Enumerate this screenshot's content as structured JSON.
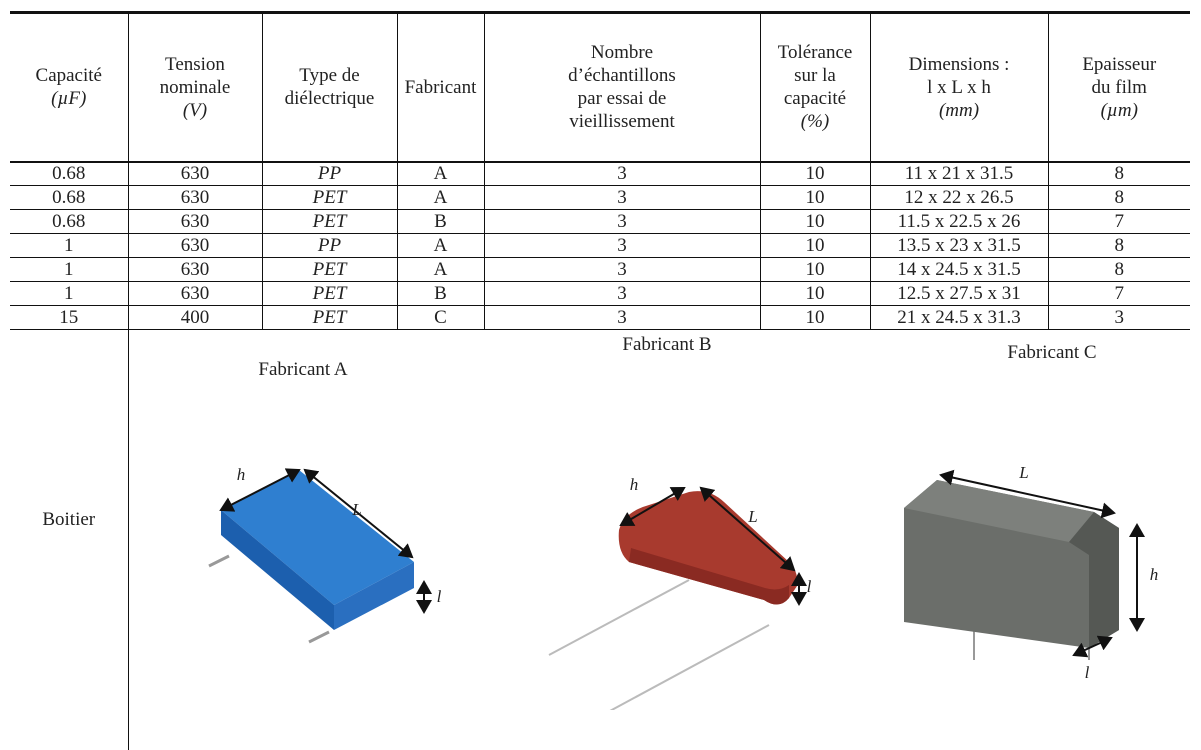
{
  "table": {
    "headers": [
      {
        "lines": [
          "Capacité"
        ],
        "unit": "(µF)"
      },
      {
        "lines": [
          "Tension",
          "nominale"
        ],
        "unit": "(V)"
      },
      {
        "lines": [
          "Type de",
          "diélectrique"
        ]
      },
      {
        "lines": [
          "Fabricant"
        ]
      },
      {
        "lines": [
          "Nombre",
          "d’échantillons",
          "par essai de",
          "vieillissement"
        ]
      },
      {
        "lines": [
          "Tolérance",
          "sur la",
          "capacité"
        ],
        "unit": "(%)"
      },
      {
        "lines": [
          "Dimensions :",
          "l x L x h"
        ],
        "unit": "(mm)"
      },
      {
        "lines": [
          "Epaisseur",
          "du film"
        ],
        "unit": "(µm)"
      }
    ],
    "rows": [
      [
        0.68,
        630,
        "PP",
        "A",
        3,
        10,
        "11 x 21 x 31.5",
        8
      ],
      [
        0.68,
        630,
        "PET",
        "A",
        3,
        10,
        "12 x 22 x 26.5",
        8
      ],
      [
        0.68,
        630,
        "PET",
        "B",
        3,
        10,
        "11.5 x 22.5 x 26",
        7
      ],
      [
        1,
        630,
        "PP",
        "A",
        3,
        10,
        "13.5 x 23 x 31.5",
        8
      ],
      [
        1,
        630,
        "PET",
        "A",
        3,
        10,
        "14 x 24.5 x 31.5",
        8
      ],
      [
        1,
        630,
        "PET",
        "B",
        3,
        10,
        "12.5 x 27.5 x 31",
        7
      ],
      [
        15,
        400,
        "PET",
        "C",
        3,
        10,
        "21 x 24.5 x 31.3",
        3
      ]
    ],
    "boitier": {
      "label": "Boitier",
      "images": [
        {
          "caption": "Fabricant A",
          "h": "h",
          "L": "L",
          "l": "l"
        },
        {
          "caption": "Fabricant B",
          "h": "h",
          "L": "L",
          "l": "l"
        },
        {
          "caption": "Fabricant C",
          "h": "h",
          "L": "L",
          "l": "l"
        }
      ]
    }
  }
}
